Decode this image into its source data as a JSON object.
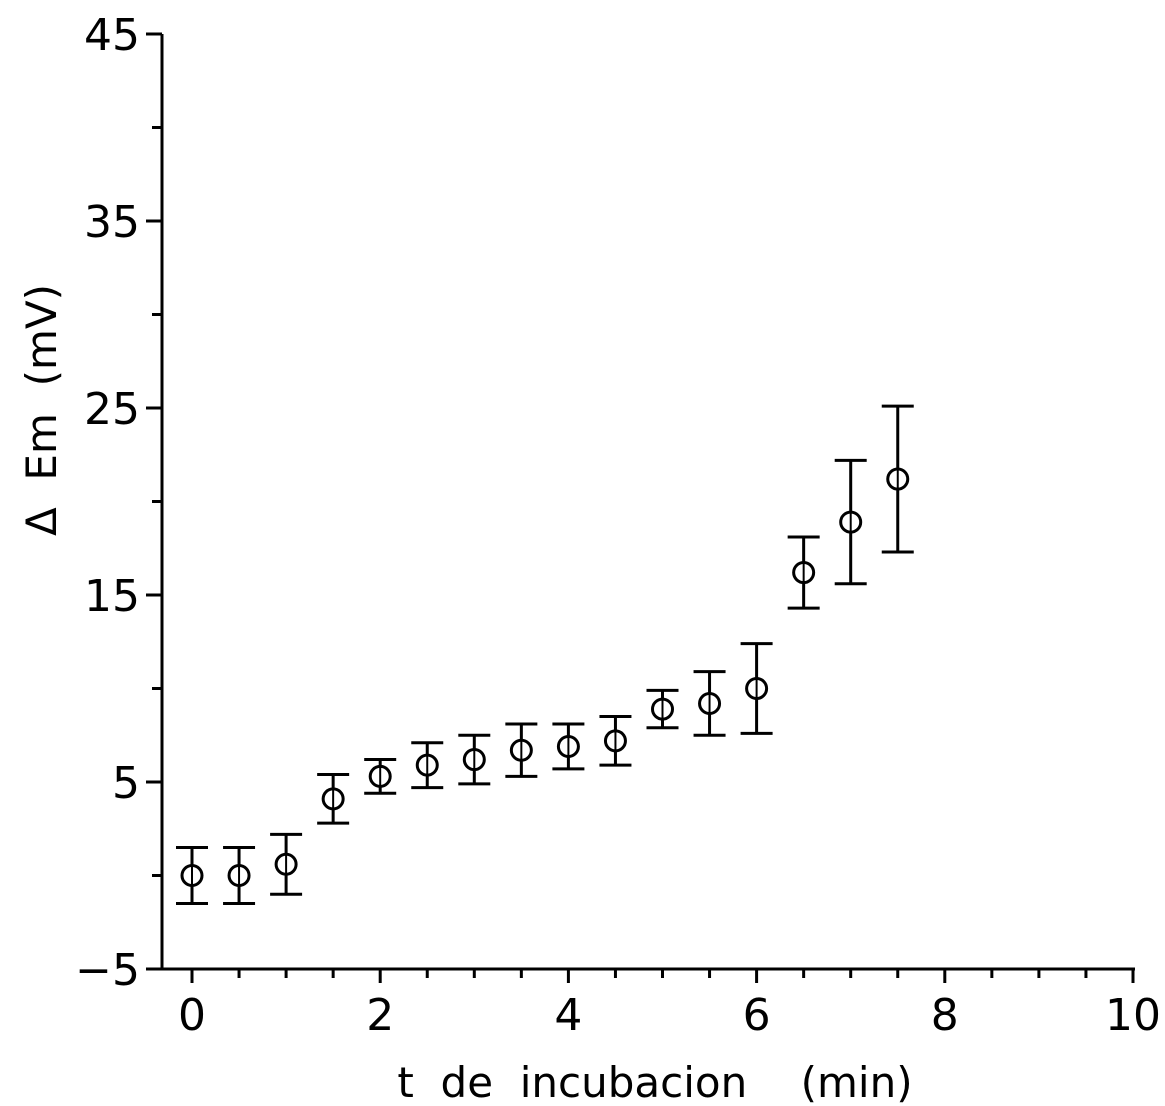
{
  "chart_data": {
    "type": "scatter",
    "title": "",
    "xlabel": "t  de  incubacion    (min)",
    "ylabel": "Δ  Em  (mV)",
    "xlim": [
      0,
      10
    ],
    "ylim": [
      -5,
      45
    ],
    "x_ticks": [
      0,
      2,
      4,
      6,
      8,
      10
    ],
    "x_tick_labels": [
      "0",
      "2",
      "4",
      "6",
      "8",
      "10"
    ],
    "x_minor_step": 0.5,
    "y_ticks": [
      -5,
      5,
      15,
      25,
      35,
      45
    ],
    "y_tick_labels": [
      "−5",
      "5",
      "15",
      "25",
      "35",
      "45"
    ],
    "y_minor_step": 5,
    "grid": false,
    "legend": "none",
    "marker": "open-circle",
    "error_bars": true,
    "points": [
      {
        "x": 0.0,
        "y": 0.0,
        "err": 1.5
      },
      {
        "x": 0.5,
        "y": 0.0,
        "err": 1.5
      },
      {
        "x": 1.0,
        "y": 0.6,
        "err": 1.6
      },
      {
        "x": 1.5,
        "y": 4.1,
        "err": 1.3
      },
      {
        "x": 2.0,
        "y": 5.3,
        "err": 0.9
      },
      {
        "x": 2.5,
        "y": 5.9,
        "err": 1.2
      },
      {
        "x": 3.0,
        "y": 6.2,
        "err": 1.3
      },
      {
        "x": 3.5,
        "y": 6.7,
        "err": 1.4
      },
      {
        "x": 4.0,
        "y": 6.9,
        "err": 1.2
      },
      {
        "x": 4.5,
        "y": 7.2,
        "err": 1.3
      },
      {
        "x": 5.0,
        "y": 8.9,
        "err": 1.0
      },
      {
        "x": 5.5,
        "y": 9.2,
        "err": 1.7
      },
      {
        "x": 6.0,
        "y": 10.0,
        "err": 2.4
      },
      {
        "x": 6.5,
        "y": 16.2,
        "err": 1.9
      },
      {
        "x": 7.0,
        "y": 18.9,
        "err": 3.3
      },
      {
        "x": 7.5,
        "y": 21.2,
        "err": 3.9
      }
    ]
  }
}
